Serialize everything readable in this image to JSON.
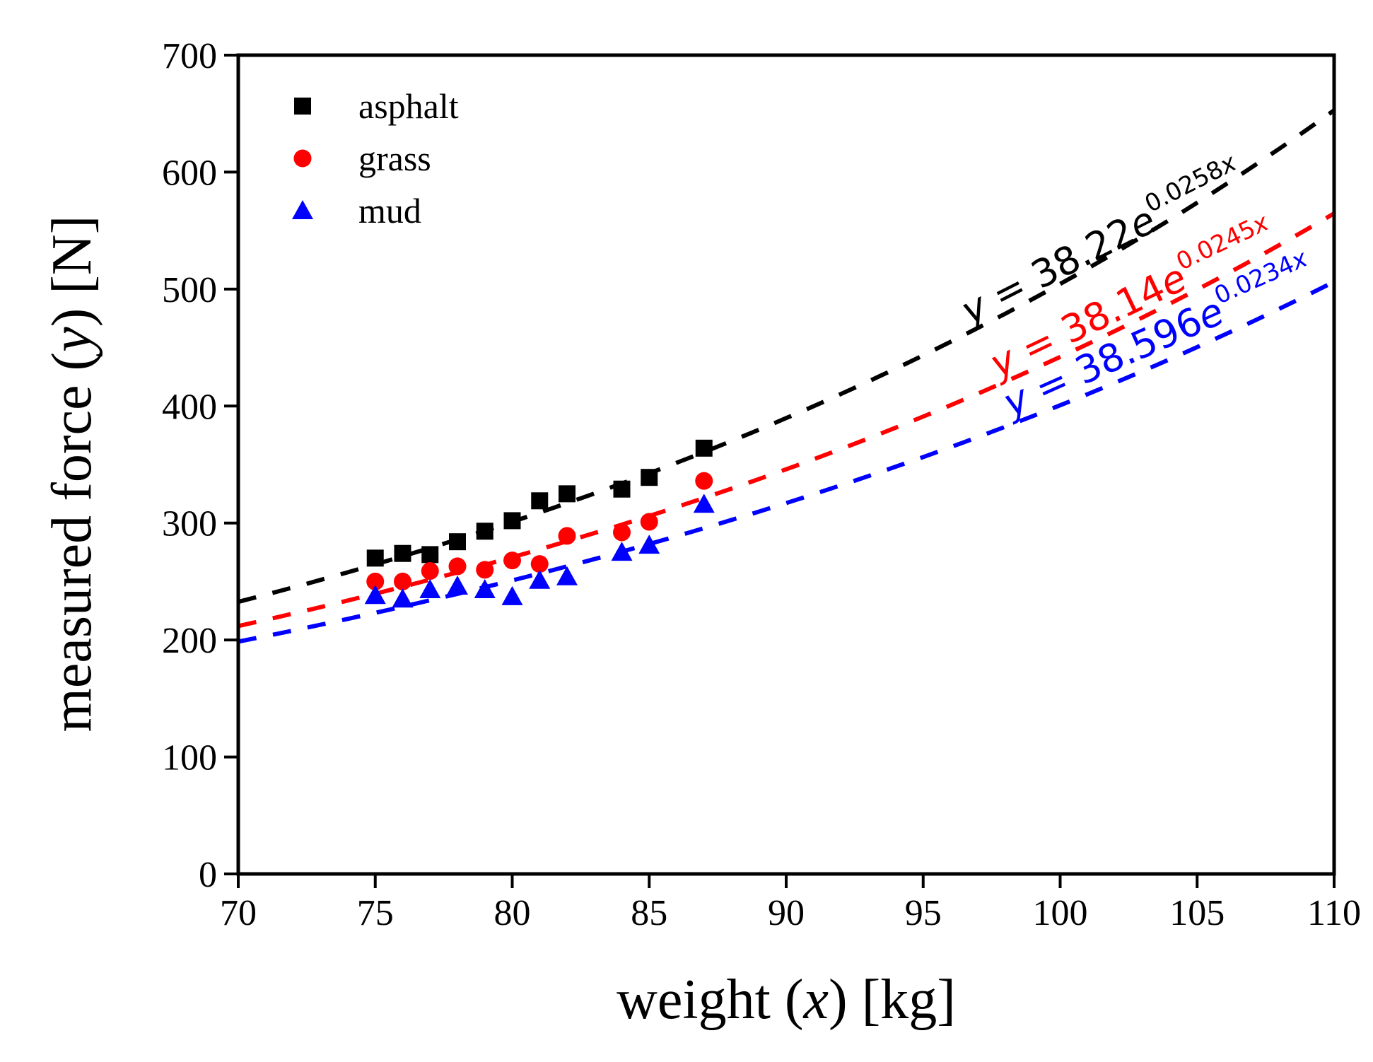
{
  "chart_data": {
    "type": "scatter",
    "xlabel": {
      "prefix": "weight (",
      "var": "x",
      "suffix": ") [kg]"
    },
    "ylabel": {
      "prefix": "measured force (",
      "var": "y",
      "suffix": ") [N]"
    },
    "xlim": [
      70,
      110
    ],
    "ylim": [
      0,
      700
    ],
    "xticks": [
      70,
      75,
      80,
      85,
      90,
      95,
      100,
      105,
      110
    ],
    "yticks": [
      0,
      100,
      200,
      300,
      400,
      500,
      600,
      700
    ],
    "grid": false,
    "legend_position": "top-left",
    "series": [
      {
        "name": "asphalt",
        "color": "#000000",
        "marker": "square",
        "x": [
          75,
          76,
          77,
          78,
          79,
          80,
          81,
          82,
          84,
          85,
          87
        ],
        "y": [
          270,
          274,
          273,
          284,
          293,
          302,
          319,
          325,
          329,
          339,
          364
        ],
        "fit": {
          "a": 38.22,
          "b": 0.0258,
          "label_y": "y",
          "label_eq": " = 38.22",
          "label_e": "e",
          "label_exp": "0.0258",
          "label_expvar": "x"
        }
      },
      {
        "name": "grass",
        "color": "#ff0000",
        "marker": "circle",
        "x": [
          75,
          76,
          77,
          78,
          79,
          80,
          81,
          82,
          84,
          85,
          87
        ],
        "y": [
          250,
          250,
          259,
          263,
          260,
          268,
          265,
          289,
          292,
          301,
          336
        ],
        "fit": {
          "a": 38.14,
          "b": 0.0245,
          "label_y": "y",
          "label_eq": " = 38.14",
          "label_e": "e",
          "label_exp": "0.0245",
          "label_expvar": "x"
        }
      },
      {
        "name": "mud",
        "color": "#0000ff",
        "marker": "triangle",
        "x": [
          75,
          76,
          77,
          78,
          79,
          80,
          81,
          82,
          84,
          85,
          87
        ],
        "y": [
          238,
          235,
          243,
          246,
          243,
          237,
          251,
          254,
          275,
          281,
          316
        ],
        "fit": {
          "a": 38.596,
          "b": 0.0234,
          "label_y": "y",
          "label_eq": " = 38.596",
          "label_e": "e",
          "label_exp": "0.0234",
          "label_expvar": "x"
        }
      }
    ]
  }
}
